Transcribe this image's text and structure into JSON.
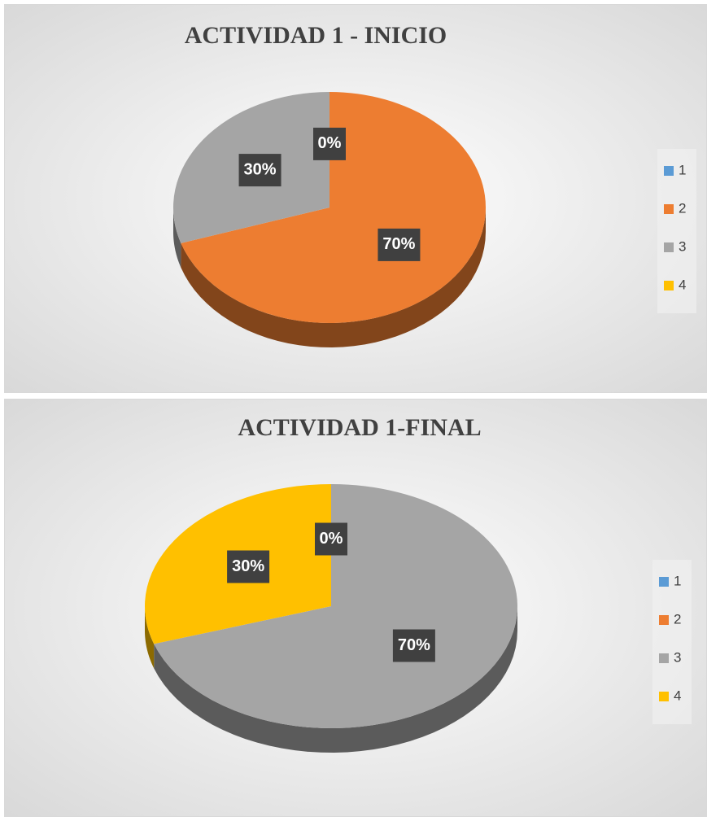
{
  "chart_data": [
    {
      "type": "pie",
      "title": "ACTIVIDAD 1 - INICIO",
      "categories": [
        "1",
        "2",
        "3",
        "4"
      ],
      "values": [
        0,
        70,
        30,
        null
      ],
      "value_labels": [
        "0%",
        "70%",
        "30%",
        null
      ],
      "colors": [
        "#5b9bd5",
        "#ed7d31",
        "#a5a5a5",
        "#ffc000"
      ],
      "legend": "right"
    },
    {
      "type": "pie",
      "title": "ACTIVIDAD 1-FINAL",
      "categories": [
        "1",
        "2",
        "3",
        "4"
      ],
      "values": [
        0,
        null,
        70,
        30
      ],
      "value_labels": [
        "0%",
        null,
        "70%",
        "30%"
      ],
      "colors": [
        "#5b9bd5",
        "#ed7d31",
        "#a5a5a5",
        "#ffc000"
      ],
      "legend": "right"
    }
  ]
}
